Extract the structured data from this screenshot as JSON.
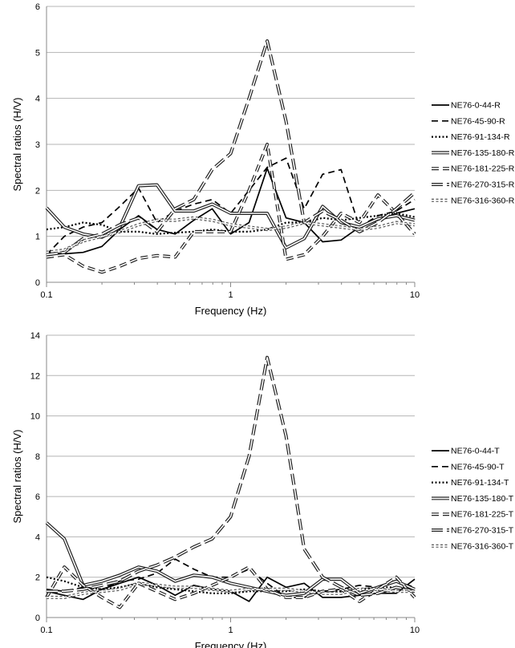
{
  "chart_data": [
    {
      "type": "line",
      "xscale": "log",
      "xlim": [
        0.1,
        10
      ],
      "ylim": [
        0,
        6
      ],
      "yticks": [
        0,
        1,
        2,
        3,
        4,
        5,
        6
      ],
      "xticks": [
        {
          "v": 0.1,
          "label": "0.1"
        },
        {
          "v": 1,
          "label": "1"
        },
        {
          "v": 10,
          "label": "10"
        }
      ],
      "xlabel": "Frequency (Hz)",
      "ylabel": "Spectral ratios (H/V)",
      "legend_position": "right",
      "x": [
        0.1,
        0.125,
        0.158,
        0.2,
        0.25,
        0.316,
        0.398,
        0.5,
        0.631,
        0.794,
        1.0,
        1.26,
        1.58,
        2.0,
        2.51,
        3.16,
        3.98,
        5.01,
        6.31,
        7.94,
        10.0
      ],
      "series": [
        {
          "name": "NE76-0-44-R",
          "style": "solid",
          "values": [
            0.65,
            0.62,
            0.65,
            0.78,
            1.15,
            1.45,
            1.15,
            1.05,
            1.35,
            1.6,
            1.05,
            1.3,
            2.48,
            1.4,
            1.3,
            0.88,
            0.92,
            1.2,
            1.35,
            1.5,
            1.6
          ]
        },
        {
          "name": "NE76-45-90-R",
          "style": "dashed",
          "values": [
            0.6,
            1.0,
            1.2,
            1.3,
            1.65,
            2.05,
            1.3,
            1.55,
            1.7,
            1.8,
            1.5,
            2.0,
            2.5,
            2.7,
            1.6,
            2.35,
            2.45,
            1.2,
            1.45,
            1.55,
            1.8
          ]
        },
        {
          "name": "NE76-91-134-R",
          "style": "dotted",
          "values": [
            1.15,
            1.2,
            1.3,
            1.25,
            1.1,
            1.1,
            1.05,
            1.08,
            1.1,
            1.15,
            1.1,
            1.1,
            1.15,
            1.3,
            1.3,
            1.4,
            1.35,
            1.4,
            1.45,
            1.5,
            1.42
          ]
        },
        {
          "name": "NE76-135-180-R",
          "style": "double",
          "values": [
            1.62,
            1.2,
            1.05,
            0.98,
            1.2,
            2.1,
            2.12,
            1.55,
            1.55,
            1.7,
            1.5,
            1.5,
            1.5,
            0.75,
            0.95,
            1.65,
            1.3,
            1.2,
            1.38,
            1.45,
            1.35
          ]
        },
        {
          "name": "NE76-181-225-R",
          "style": "double-dashed",
          "values": [
            0.55,
            0.6,
            0.35,
            0.22,
            0.35,
            0.52,
            0.58,
            0.55,
            1.1,
            1.1,
            1.1,
            2.0,
            3.0,
            0.5,
            0.6,
            1.0,
            1.5,
            1.3,
            1.9,
            1.5,
            1.05
          ]
        },
        {
          "name": "NE76-270-315-R",
          "style": "double-longdash",
          "values": [
            0.6,
            0.65,
            0.95,
            1.05,
            1.25,
            1.4,
            1.1,
            1.6,
            1.8,
            2.45,
            2.8,
            4.0,
            5.25,
            3.5,
            1.3,
            1.55,
            1.35,
            1.1,
            1.3,
            1.6,
            1.95
          ]
        },
        {
          "name": "NE76-316-360-R",
          "style": "double-dotted",
          "values": [
            0.65,
            0.7,
            0.9,
            1.0,
            1.1,
            1.25,
            1.35,
            1.35,
            1.4,
            1.35,
            1.25,
            1.2,
            1.15,
            1.2,
            1.3,
            1.25,
            1.2,
            1.15,
            1.2,
            1.3,
            1.25
          ]
        }
      ]
    },
    {
      "type": "line",
      "xscale": "log",
      "xlim": [
        0.1,
        10
      ],
      "ylim": [
        0,
        14
      ],
      "yticks": [
        0,
        2,
        4,
        6,
        8,
        10,
        12,
        14
      ],
      "xticks": [
        {
          "v": 0.1,
          "label": "0.1"
        },
        {
          "v": 1,
          "label": "1"
        },
        {
          "v": 10,
          "label": "10"
        }
      ],
      "xlabel": "Frequency (Hz)",
      "ylabel": "Spectral ratios (H/V)",
      "legend_position": "right",
      "x": [
        0.1,
        0.125,
        0.158,
        0.2,
        0.25,
        0.316,
        0.398,
        0.5,
        0.631,
        0.794,
        1.0,
        1.26,
        1.58,
        2.0,
        2.51,
        3.16,
        3.98,
        5.01,
        6.31,
        7.94,
        10.0
      ],
      "series": [
        {
          "name": "NE76-0-44-T",
          "style": "solid",
          "values": [
            1.3,
            1.1,
            0.9,
            1.4,
            1.7,
            2.0,
            1.6,
            1.1,
            1.6,
            1.4,
            1.3,
            0.8,
            2.0,
            1.5,
            1.7,
            1.0,
            1.0,
            1.1,
            1.2,
            1.2,
            1.9
          ]
        },
        {
          "name": "NE76-45-90-T",
          "style": "dashed",
          "values": [
            1.4,
            1.3,
            1.5,
            1.4,
            1.8,
            1.9,
            2.2,
            2.9,
            2.4,
            2.0,
            2.0,
            2.4,
            1.7,
            1.0,
            1.0,
            1.3,
            1.4,
            1.6,
            1.5,
            1.8,
            1.5
          ]
        },
        {
          "name": "NE76-91-134-T",
          "style": "dotted",
          "values": [
            2.0,
            1.8,
            1.5,
            1.4,
            1.5,
            1.7,
            1.5,
            1.4,
            1.3,
            1.2,
            1.2,
            1.3,
            1.3,
            1.3,
            1.4,
            1.3,
            1.3,
            1.4,
            1.5,
            1.5,
            1.4
          ]
        },
        {
          "name": "NE76-135-180-T",
          "style": "double",
          "values": [
            4.7,
            3.9,
            1.6,
            1.8,
            2.1,
            2.5,
            2.3,
            1.8,
            2.1,
            2.0,
            1.7,
            1.5,
            1.3,
            1.1,
            1.2,
            1.9,
            1.9,
            1.2,
            1.5,
            1.8,
            1.4
          ]
        },
        {
          "name": "NE76-181-225-T",
          "style": "double-dashed",
          "values": [
            1.0,
            2.5,
            1.6,
            1.0,
            0.5,
            1.7,
            1.3,
            0.9,
            1.2,
            1.6,
            2.0,
            2.5,
            1.4,
            1.0,
            1.0,
            1.3,
            1.4,
            0.8,
            1.4,
            2.0,
            1.0
          ]
        },
        {
          "name": "NE76-270-315-T",
          "style": "double-longdash",
          "values": [
            1.3,
            1.3,
            1.4,
            1.6,
            1.8,
            2.3,
            2.6,
            3.0,
            3.5,
            3.9,
            5.0,
            8.0,
            12.9,
            9.0,
            3.4,
            2.0,
            1.5,
            1.1,
            1.2,
            1.5,
            1.3
          ]
        },
        {
          "name": "NE76-316-360-T",
          "style": "double-dotted",
          "values": [
            1.0,
            1.0,
            1.2,
            1.3,
            1.4,
            1.7,
            1.6,
            1.5,
            1.5,
            1.4,
            1.3,
            1.4,
            1.4,
            1.4,
            1.3,
            1.2,
            1.2,
            1.4,
            1.4,
            1.3,
            1.3
          ]
        }
      ]
    }
  ]
}
